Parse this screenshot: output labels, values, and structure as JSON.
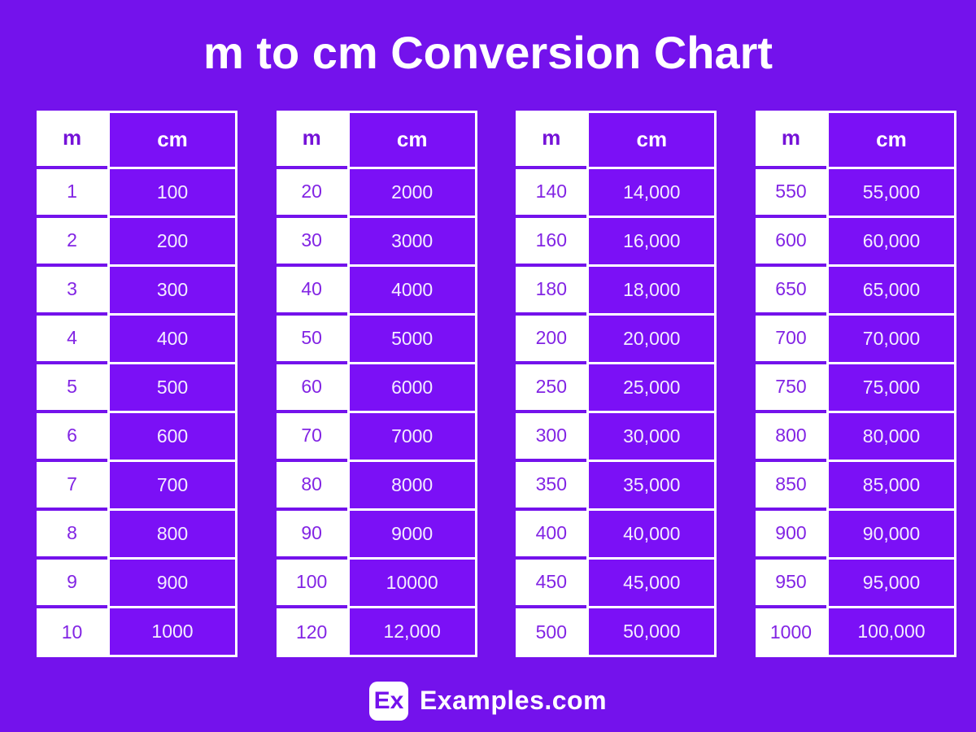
{
  "title": "m to cm Conversion Chart",
  "column_headers": {
    "m": "m",
    "cm": "cm"
  },
  "tables": [
    {
      "rows": [
        [
          "1",
          "100"
        ],
        [
          "2",
          "200"
        ],
        [
          "3",
          "300"
        ],
        [
          "4",
          "400"
        ],
        [
          "5",
          "500"
        ],
        [
          "6",
          "600"
        ],
        [
          "7",
          "700"
        ],
        [
          "8",
          "800"
        ],
        [
          "9",
          "900"
        ],
        [
          "10",
          "1000"
        ]
      ]
    },
    {
      "rows": [
        [
          "20",
          "2000"
        ],
        [
          "30",
          "3000"
        ],
        [
          "40",
          "4000"
        ],
        [
          "50",
          "5000"
        ],
        [
          "60",
          "6000"
        ],
        [
          "70",
          "7000"
        ],
        [
          "80",
          "8000"
        ],
        [
          "90",
          "9000"
        ],
        [
          "100",
          "10000"
        ],
        [
          "120",
          "12,000"
        ]
      ]
    },
    {
      "rows": [
        [
          "140",
          "14,000"
        ],
        [
          "160",
          "16,000"
        ],
        [
          "180",
          "18,000"
        ],
        [
          "200",
          "20,000"
        ],
        [
          "250",
          "25,000"
        ],
        [
          "300",
          "30,000"
        ],
        [
          "350",
          "35,000"
        ],
        [
          "400",
          "40,000"
        ],
        [
          "450",
          "45,000"
        ],
        [
          "500",
          "50,000"
        ]
      ]
    },
    {
      "rows": [
        [
          "550",
          "55,000"
        ],
        [
          "600",
          "60,000"
        ],
        [
          "650",
          "65,000"
        ],
        [
          "700",
          "70,000"
        ],
        [
          "750",
          "75,000"
        ],
        [
          "800",
          "80,000"
        ],
        [
          "850",
          "85,000"
        ],
        [
          "900",
          "90,000"
        ],
        [
          "950",
          "95,000"
        ],
        [
          "1000",
          "100,000"
        ]
      ]
    }
  ],
  "footer": {
    "badge": "Ex",
    "brand": "Examples.com"
  },
  "colors": {
    "background": "#7412EC",
    "cell_purple": "#7B10F6",
    "m_text": "#8224E4",
    "m_header_text": "#7512D8",
    "cm_text": "#F3ECFF",
    "border_white": "#FFFFFF"
  },
  "chart_data": {
    "type": "table",
    "title": "m to cm Conversion Chart",
    "columns": [
      "m",
      "cm"
    ],
    "rows": [
      [
        1,
        100
      ],
      [
        2,
        200
      ],
      [
        3,
        300
      ],
      [
        4,
        400
      ],
      [
        5,
        500
      ],
      [
        6,
        600
      ],
      [
        7,
        700
      ],
      [
        8,
        800
      ],
      [
        9,
        900
      ],
      [
        10,
        1000
      ],
      [
        20,
        2000
      ],
      [
        30,
        3000
      ],
      [
        40,
        4000
      ],
      [
        50,
        5000
      ],
      [
        60,
        6000
      ],
      [
        70,
        7000
      ],
      [
        80,
        8000
      ],
      [
        90,
        9000
      ],
      [
        100,
        10000
      ],
      [
        120,
        12000
      ],
      [
        140,
        14000
      ],
      [
        160,
        16000
      ],
      [
        180,
        18000
      ],
      [
        200,
        20000
      ],
      [
        250,
        25000
      ],
      [
        300,
        30000
      ],
      [
        350,
        35000
      ],
      [
        400,
        40000
      ],
      [
        450,
        45000
      ],
      [
        500,
        50000
      ],
      [
        550,
        55000
      ],
      [
        600,
        60000
      ],
      [
        650,
        65000
      ],
      [
        700,
        70000
      ],
      [
        750,
        75000
      ],
      [
        800,
        80000
      ],
      [
        850,
        85000
      ],
      [
        900,
        90000
      ],
      [
        950,
        95000
      ],
      [
        1000,
        100000
      ]
    ],
    "layout": "four table columns left to right, m column white with purple text, cm column purple with white text"
  }
}
